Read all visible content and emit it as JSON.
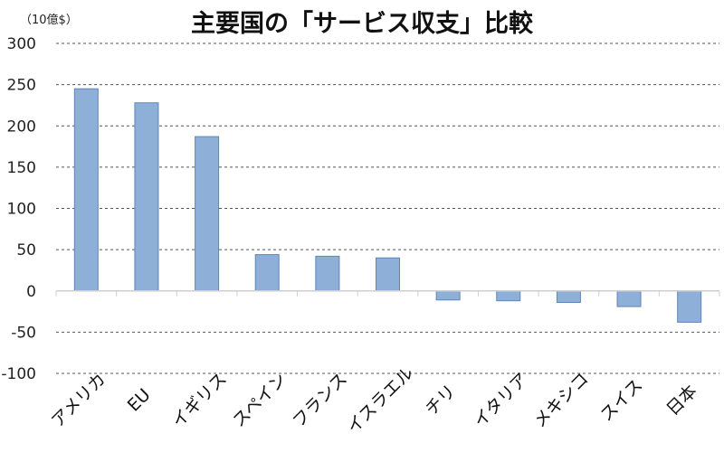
{
  "chart_data": {
    "type": "bar",
    "title": "主要国の「サービス収支」比較",
    "unit_label": "（10億$）",
    "categories": [
      "アメリカ",
      "EU",
      "イギリス",
      "スペイン",
      "フランス",
      "イスラエル",
      "チリ",
      "イタリア",
      "メキシコ",
      "スイス",
      "日本"
    ],
    "values": [
      245,
      228,
      187,
      44,
      42,
      40,
      -11,
      -12,
      -14,
      -19,
      -38
    ],
    "ylim": [
      -100,
      300
    ],
    "yticks": [
      -100,
      -50,
      0,
      50,
      100,
      150,
      200,
      250,
      300
    ],
    "grid": true,
    "bar_color": "#8eb0d8",
    "bar_border_color": "#5f86b8"
  }
}
